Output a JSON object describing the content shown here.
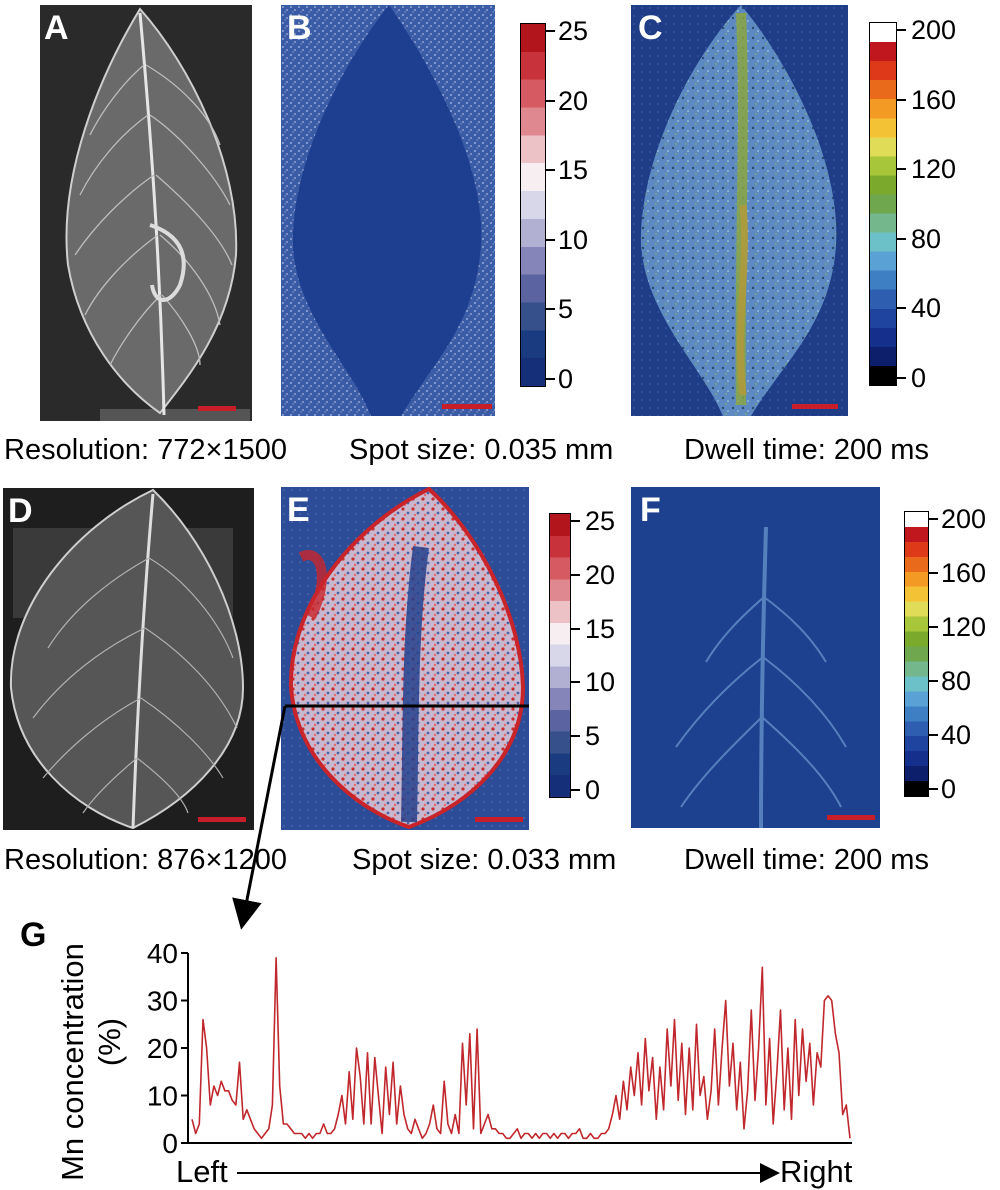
{
  "panels": {
    "A": "A",
    "B": "B",
    "C": "C",
    "D": "D",
    "E": "E",
    "F": "F",
    "G": "G"
  },
  "colorbar_small": {
    "ticks": [
      "25",
      "20",
      "15",
      "10",
      "5",
      "0"
    ],
    "colors": [
      "#b3151d",
      "#c8323a",
      "#d55a61",
      "#e08890",
      "#edc2c7",
      "#f6eef1",
      "#d8d7ea",
      "#b1b0d3",
      "#8585b9",
      "#5b64a1",
      "#36508c",
      "#1b3b80",
      "#152f78"
    ]
  },
  "colorbar_large": {
    "ticks": [
      "200",
      "160",
      "120",
      "80",
      "40",
      "0"
    ],
    "colors": [
      "#ffffff",
      "#c0161e",
      "#de3a1a",
      "#ea6a1b",
      "#f29a24",
      "#f3c235",
      "#e1dc57",
      "#a8c63a",
      "#7aa92c",
      "#6ea74d",
      "#74b78c",
      "#6cc0c7",
      "#5aa2d6",
      "#3e7fc4",
      "#2e5eb0",
      "#1e44a0",
      "#15308c",
      "#0d1f6a",
      "#000000"
    ]
  },
  "captions": {
    "row1": {
      "resolution": "Resolution: 772×1500",
      "spot": "Spot size: 0.035 mm",
      "dwell": "Dwell time: 200 ms"
    },
    "row2": {
      "resolution": "Resolution: 876×1200",
      "spot": "Spot size: 0.033 mm",
      "dwell": "Dwell time: 200 ms"
    }
  },
  "chart_data": {
    "type": "line",
    "ylabel_line1": "Mn concentration",
    "ylabel_line2": "(%)",
    "xlabel_left": "Left",
    "xlabel_right": "Right",
    "ylim": [
      0,
      40
    ],
    "yticks": [
      "0",
      "10",
      "20",
      "30",
      "40"
    ],
    "color": "#c0282d",
    "series": [
      {
        "values": [
          5,
          2,
          4,
          26,
          20,
          8,
          12,
          10,
          13,
          11,
          11,
          9,
          8,
          17,
          5,
          7,
          5,
          3,
          2,
          1,
          2,
          3,
          8,
          39,
          12,
          4,
          4,
          3,
          2,
          2,
          2,
          1,
          2,
          1,
          2,
          2,
          4,
          2,
          2,
          3,
          6,
          10,
          4,
          15,
          5,
          20,
          14,
          4,
          19,
          4,
          18,
          10,
          2,
          16,
          6,
          17,
          4,
          12,
          6,
          3,
          2,
          5,
          3,
          1,
          2,
          4,
          8,
          3,
          2,
          13,
          4,
          2,
          6,
          2,
          21,
          8,
          23,
          3,
          24,
          2,
          4,
          6,
          3,
          3,
          2,
          2,
          1,
          1,
          2,
          3,
          1,
          2,
          2,
          1,
          2,
          1,
          2,
          2,
          1,
          2,
          1,
          2,
          2,
          1,
          2,
          2,
          3,
          1,
          1,
          2,
          1,
          1,
          2,
          2,
          3,
          6,
          10,
          5,
          13,
          7,
          16,
          10,
          19,
          8,
          22,
          11,
          18,
          5,
          16,
          7,
          24,
          12,
          26,
          9,
          21,
          6,
          20,
          7,
          25,
          10,
          14,
          5,
          11,
          24,
          8,
          20,
          30,
          12,
          21,
          7,
          17,
          3,
          11,
          28,
          9,
          20,
          37,
          8,
          22,
          4,
          15,
          28,
          7,
          20,
          5,
          26,
          10,
          24,
          13,
          21,
          8,
          19,
          16,
          30,
          31,
          30,
          23,
          19,
          6,
          8,
          1
        ]
      }
    ]
  }
}
